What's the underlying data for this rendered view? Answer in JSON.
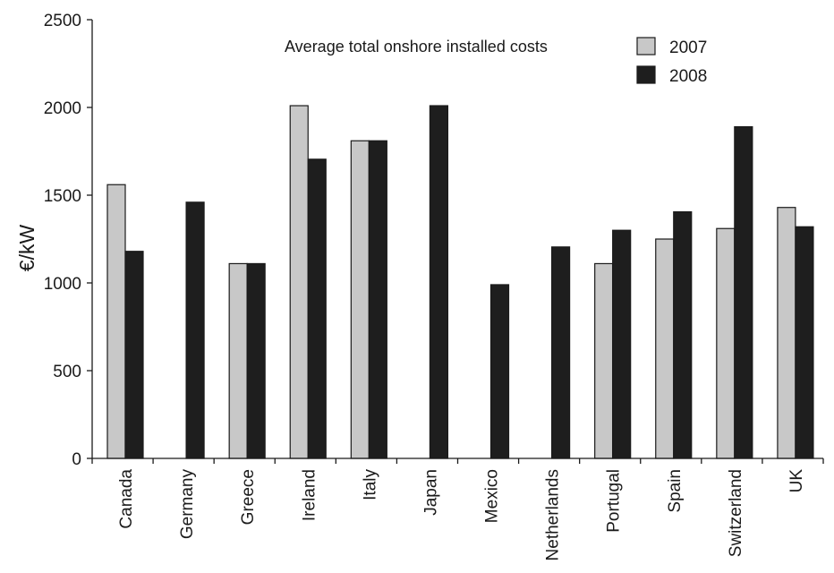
{
  "chart_data": {
    "type": "bar",
    "title": "",
    "annotation": "Average total onshore installed costs",
    "xlabel": "",
    "ylabel": "€/kW",
    "ylim": [
      0,
      2500
    ],
    "yticks": [
      0,
      500,
      1000,
      1500,
      2000,
      2500
    ],
    "grid": false,
    "legend_position": "top-right",
    "categories": [
      "Canada",
      "Germany",
      "Greece",
      "Ireland",
      "Italy",
      "Japan",
      "Mexico",
      "Netherlands",
      "Portugal",
      "Spain",
      "Switzerland",
      "UK"
    ],
    "series": [
      {
        "name": "2007",
        "color": "#c8c8c8",
        "values": [
          1560,
          null,
          1110,
          2010,
          1810,
          null,
          null,
          null,
          1110,
          1250,
          1310,
          1430
        ]
      },
      {
        "name": "2008",
        "color": "#1e1e1e",
        "values": [
          1180,
          1460,
          1110,
          1705,
          1810,
          2010,
          990,
          1205,
          1300,
          1405,
          1890,
          1320
        ]
      }
    ]
  }
}
